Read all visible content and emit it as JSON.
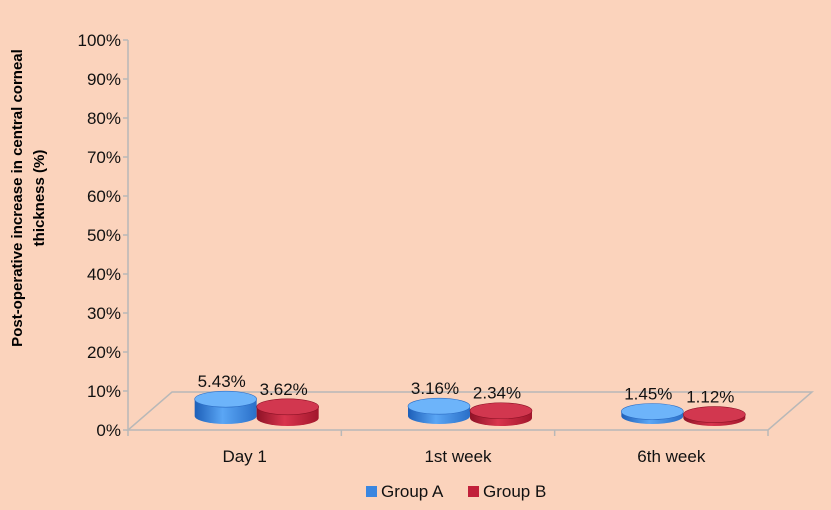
{
  "chart_data": {
    "type": "bar",
    "ylabel_line1": "Post-operative increase in central corneal",
    "ylabel_line2": "thickness (%)",
    "categories": [
      "Day 1",
      "1st week",
      "6th week"
    ],
    "series": [
      {
        "name": "Group A",
        "color": "#3a86e0",
        "values": [
          5.43,
          3.16,
          1.45
        ],
        "labels": [
          "5.43%",
          "3.16%",
          "1.45%"
        ]
      },
      {
        "name": "Group B",
        "color": "#c1203a",
        "values": [
          3.62,
          2.34,
          1.12
        ],
        "labels": [
          "3.62%",
          "2.34%",
          "1.12%"
        ]
      }
    ],
    "ylim": [
      0,
      100
    ],
    "yticks": [
      "0%",
      "10%",
      "20%",
      "30%",
      "40%",
      "50%",
      "60%",
      "70%",
      "80%",
      "90%",
      "100%"
    ],
    "legend_position": "bottom",
    "grid": false
  }
}
